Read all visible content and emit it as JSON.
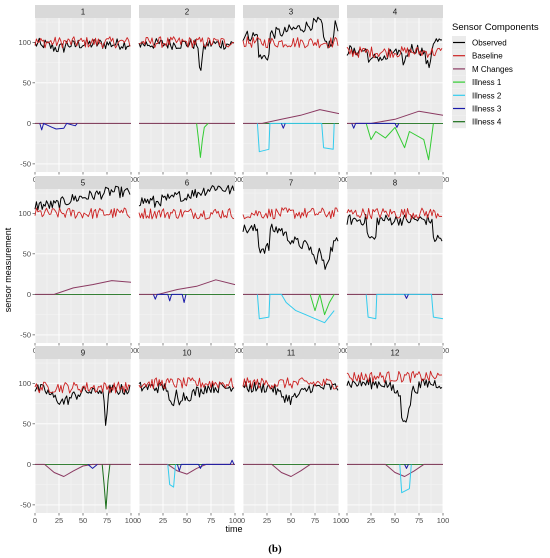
{
  "chart_data": {
    "type": "line",
    "xlabel": "time",
    "ylabel": "sensor measurement",
    "caption": "(b)",
    "xlim": [
      0,
      100
    ],
    "ylim": [
      -60,
      130
    ],
    "x_ticks": [
      0,
      25,
      50,
      75,
      100
    ],
    "y_ticks": [
      -50,
      0,
      50,
      100
    ],
    "grid": true,
    "legend": {
      "title": "Sensor Components",
      "position": "right",
      "entries": [
        {
          "name": "Observed",
          "color": "#000000"
        },
        {
          "name": "Baseline",
          "color": "#cc2222"
        },
        {
          "name": "M Changes",
          "color": "#8b3a62"
        },
        {
          "name": "Illness 1",
          "color": "#33cc33"
        },
        {
          "name": "Illness 2",
          "color": "#33ccee"
        },
        {
          "name": "Illness 3",
          "color": "#1a1aaa"
        },
        {
          "name": "Illness 4",
          "color": "#1a6e1a"
        }
      ]
    },
    "panels": [
      {
        "label": "1",
        "observed_level": 98,
        "baseline_level": 100,
        "m_changes": [
          [
            0,
            0
          ],
          [
            100,
            0
          ]
        ],
        "illness": [
          {
            "series": "Illness 3",
            "points": [
              [
                5,
                0
              ],
              [
                7,
                -8
              ],
              [
                9,
                0
              ],
              [
                18,
                -5
              ],
              [
                22,
                -7
              ],
              [
                30,
                -6
              ],
              [
                33,
                0
              ],
              [
                42,
                -3
              ],
              [
                44,
                0
              ]
            ]
          }
        ]
      },
      {
        "label": "2",
        "observed_level": 98,
        "baseline_level": 100,
        "m_changes": [
          [
            0,
            0
          ],
          [
            100,
            0
          ]
        ],
        "illness": [
          {
            "series": "Illness 1",
            "points": [
              [
                60,
                0
              ],
              [
                62,
                -20
              ],
              [
                64,
                -42
              ],
              [
                66,
                -20
              ],
              [
                68,
                -5
              ],
              [
                72,
                0
              ]
            ]
          }
        ]
      },
      {
        "label": "3",
        "observed_level": 108,
        "baseline_level": 100,
        "m_changes": [
          [
            0,
            0
          ],
          [
            20,
            0
          ],
          [
            40,
            5
          ],
          [
            60,
            10
          ],
          [
            80,
            17
          ],
          [
            100,
            12
          ]
        ],
        "illness": [
          {
            "series": "Illness 2",
            "points": [
              [
                15,
                0
              ],
              [
                17,
                -35
              ],
              [
                27,
                -32
              ],
              [
                28,
                0
              ],
              [
                82,
                0
              ],
              [
                84,
                -30
              ],
              [
                94,
                -32
              ],
              [
                95,
                0
              ]
            ]
          },
          {
            "series": "Illness 3",
            "points": [
              [
                40,
                0
              ],
              [
                42,
                -6
              ],
              [
                44,
                0
              ]
            ]
          }
        ]
      },
      {
        "label": "4",
        "observed_level": 90,
        "baseline_level": 88,
        "m_changes": [
          [
            0,
            0
          ],
          [
            25,
            0
          ],
          [
            50,
            5
          ],
          [
            75,
            15
          ],
          [
            100,
            10
          ]
        ],
        "illness": [
          {
            "series": "Illness 1",
            "points": [
              [
                20,
                0
              ],
              [
                25,
                -20
              ],
              [
                30,
                -10
              ],
              [
                40,
                -18
              ],
              [
                50,
                -5
              ],
              [
                60,
                -30
              ],
              [
                65,
                -10
              ],
              [
                80,
                -20
              ],
              [
                85,
                -45
              ],
              [
                90,
                0
              ]
            ]
          },
          {
            "series": "Illness 3",
            "points": [
              [
                5,
                0
              ],
              [
                7,
                -6
              ],
              [
                9,
                0
              ],
              [
                50,
                0
              ],
              [
                52,
                -5
              ],
              [
                54,
                0
              ]
            ]
          }
        ]
      },
      {
        "label": "5",
        "observed_level": 110,
        "baseline_level": 100,
        "m_changes": [
          [
            0,
            0
          ],
          [
            20,
            0
          ],
          [
            40,
            8
          ],
          [
            60,
            12
          ],
          [
            80,
            17
          ],
          [
            100,
            15
          ]
        ],
        "illness": []
      },
      {
        "label": "6",
        "observed_level": 115,
        "baseline_level": 100,
        "m_changes": [
          [
            0,
            0
          ],
          [
            20,
            0
          ],
          [
            40,
            6
          ],
          [
            60,
            10
          ],
          [
            80,
            18
          ],
          [
            100,
            12
          ]
        ],
        "illness": [
          {
            "series": "Illness 3",
            "points": [
              [
                15,
                0
              ],
              [
                17,
                -6
              ],
              [
                19,
                0
              ],
              [
                30,
                0
              ],
              [
                32,
                -8
              ],
              [
                34,
                0
              ],
              [
                45,
                0
              ],
              [
                47,
                -10
              ],
              [
                49,
                0
              ]
            ]
          }
        ]
      },
      {
        "label": "7",
        "observed_level": 80,
        "baseline_level": 100,
        "m_changes": [
          [
            0,
            0
          ],
          [
            100,
            0
          ]
        ],
        "illness": [
          {
            "series": "Illness 2",
            "points": [
              [
                15,
                0
              ],
              [
                17,
                -30
              ],
              [
                27,
                -28
              ],
              [
                28,
                0
              ],
              [
                40,
                0
              ],
              [
                45,
                -10
              ],
              [
                55,
                -20
              ],
              [
                65,
                -25
              ],
              [
                75,
                -30
              ],
              [
                85,
                -35
              ],
              [
                95,
                -20
              ]
            ]
          },
          {
            "series": "Illness 1",
            "points": [
              [
                70,
                0
              ],
              [
                75,
                -20
              ],
              [
                80,
                0
              ],
              [
                85,
                -25
              ],
              [
                90,
                -10
              ],
              [
                95,
                0
              ]
            ]
          }
        ]
      },
      {
        "label": "8",
        "observed_level": 92,
        "baseline_level": 100,
        "m_changes": [
          [
            0,
            0
          ],
          [
            100,
            0
          ]
        ],
        "illness": [
          {
            "series": "Illness 2",
            "points": [
              [
                20,
                0
              ],
              [
                22,
                -28
              ],
              [
                30,
                -30
              ],
              [
                31,
                0
              ],
              [
                88,
                0
              ],
              [
                90,
                -28
              ],
              [
                100,
                -30
              ]
            ]
          },
          {
            "series": "Illness 3",
            "points": [
              [
                60,
                0
              ],
              [
                62,
                -5
              ],
              [
                64,
                0
              ]
            ]
          }
        ]
      },
      {
        "label": "9",
        "observed_level": 92,
        "baseline_level": 95,
        "m_changes": [
          [
            0,
            0
          ],
          [
            10,
            0
          ],
          [
            20,
            -10
          ],
          [
            30,
            -15
          ],
          [
            40,
            -8
          ],
          [
            50,
            -2
          ],
          [
            60,
            0
          ],
          [
            100,
            0
          ]
        ],
        "illness": [
          {
            "series": "Illness 4",
            "points": [
              [
                70,
                0
              ],
              [
                72,
                -25
              ],
              [
                74,
                -55
              ],
              [
                76,
                -20
              ],
              [
                78,
                0
              ]
            ]
          },
          {
            "series": "Illness 3",
            "points": [
              [
                55,
                0
              ],
              [
                60,
                -5
              ],
              [
                65,
                0
              ]
            ]
          }
        ]
      },
      {
        "label": "10",
        "observed_level": 95,
        "baseline_level": 100,
        "m_changes": [
          [
            0,
            0
          ],
          [
            30,
            0
          ],
          [
            40,
            -8
          ],
          [
            50,
            -12
          ],
          [
            60,
            -5
          ],
          [
            70,
            0
          ],
          [
            100,
            0
          ]
        ],
        "illness": [
          {
            "series": "Illness 2",
            "points": [
              [
                30,
                0
              ],
              [
                32,
                -25
              ],
              [
                36,
                -28
              ],
              [
                38,
                0
              ]
            ]
          },
          {
            "series": "Illness 3",
            "points": [
              [
                40,
                0
              ],
              [
                42,
                -8
              ],
              [
                44,
                0
              ],
              [
                62,
                0
              ],
              [
                64,
                -5
              ],
              [
                66,
                0
              ],
              [
                95,
                0
              ],
              [
                97,
                5
              ],
              [
                99,
                0
              ]
            ]
          }
        ]
      },
      {
        "label": "11",
        "observed_level": 95,
        "baseline_level": 100,
        "m_changes": [
          [
            0,
            0
          ],
          [
            30,
            0
          ],
          [
            40,
            -10
          ],
          [
            50,
            -15
          ],
          [
            60,
            -8
          ],
          [
            70,
            0
          ],
          [
            100,
            0
          ]
        ],
        "illness": []
      },
      {
        "label": "12",
        "observed_level": 100,
        "baseline_level": 108,
        "m_changes": [
          [
            0,
            0
          ],
          [
            40,
            0
          ],
          [
            50,
            -10
          ],
          [
            60,
            -15
          ],
          [
            70,
            -8
          ],
          [
            80,
            0
          ],
          [
            100,
            0
          ]
        ],
        "illness": [
          {
            "series": "Illness 2",
            "points": [
              [
                55,
                0
              ],
              [
                57,
                -35
              ],
              [
                65,
                -30
              ],
              [
                67,
                0
              ]
            ]
          },
          {
            "series": "Illness 3",
            "points": [
              [
                60,
                0
              ],
              [
                62,
                -5
              ],
              [
                64,
                0
              ]
            ]
          }
        ]
      }
    ]
  }
}
